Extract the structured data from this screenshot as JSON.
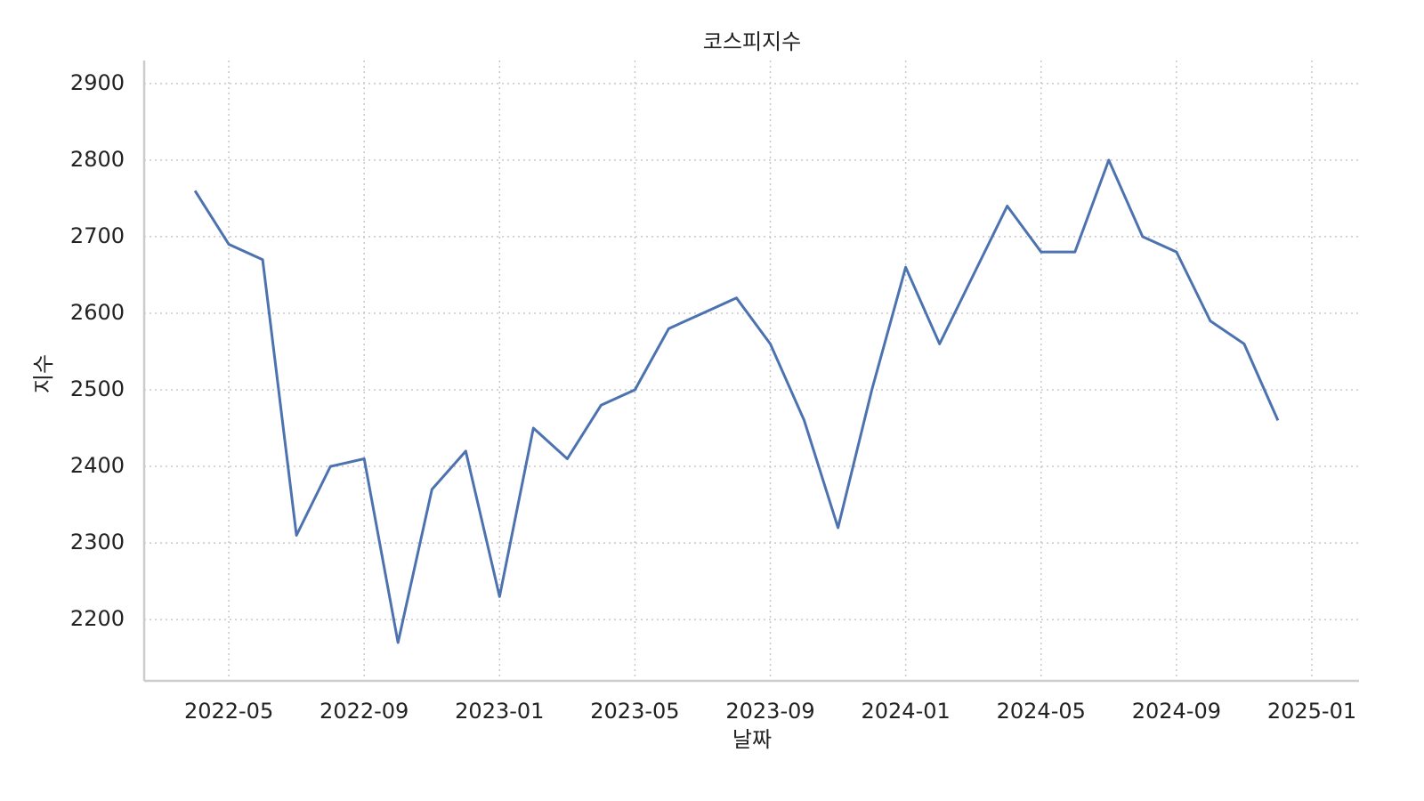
{
  "chart_data": {
    "type": "line",
    "title": "코스피지수",
    "x_label": "날짜",
    "y_label": "지수",
    "x": [
      "2022-04",
      "2022-05",
      "2022-06",
      "2022-07",
      "2022-08",
      "2022-09",
      "2022-10",
      "2022-11",
      "2022-12",
      "2023-01",
      "2023-02",
      "2023-03",
      "2023-04",
      "2023-05",
      "2023-06",
      "2023-07",
      "2023-08",
      "2023-09",
      "2023-10",
      "2023-11",
      "2023-12",
      "2024-01",
      "2024-02",
      "2024-03",
      "2024-04",
      "2024-05",
      "2024-06",
      "2024-07",
      "2024-08",
      "2024-09",
      "2024-10",
      "2024-11",
      "2024-12"
    ],
    "series": [
      {
        "name": "코스피",
        "color": "#4c72b0",
        "values": [
          2760,
          2690,
          2670,
          2310,
          2400,
          2410,
          2170,
          2370,
          2420,
          2230,
          2450,
          2410,
          2480,
          2500,
          2580,
          2600,
          2620,
          2560,
          2460,
          2320,
          2500,
          2660,
          2560,
          2650,
          2740,
          2680,
          2680,
          2800,
          2700,
          2680,
          2590,
          2560,
          2460
        ]
      }
    ],
    "xlim": [
      "2022-02",
      "2025-02"
    ],
    "xticks": [
      "2022-05",
      "2022-09",
      "2023-01",
      "2023-05",
      "2023-09",
      "2024-01",
      "2024-05",
      "2024-09",
      "2025-01"
    ],
    "ylim": [
      2120,
      2930
    ],
    "yticks": [
      2200,
      2300,
      2400,
      2500,
      2600,
      2700,
      2800,
      2900
    ],
    "grid": true
  }
}
